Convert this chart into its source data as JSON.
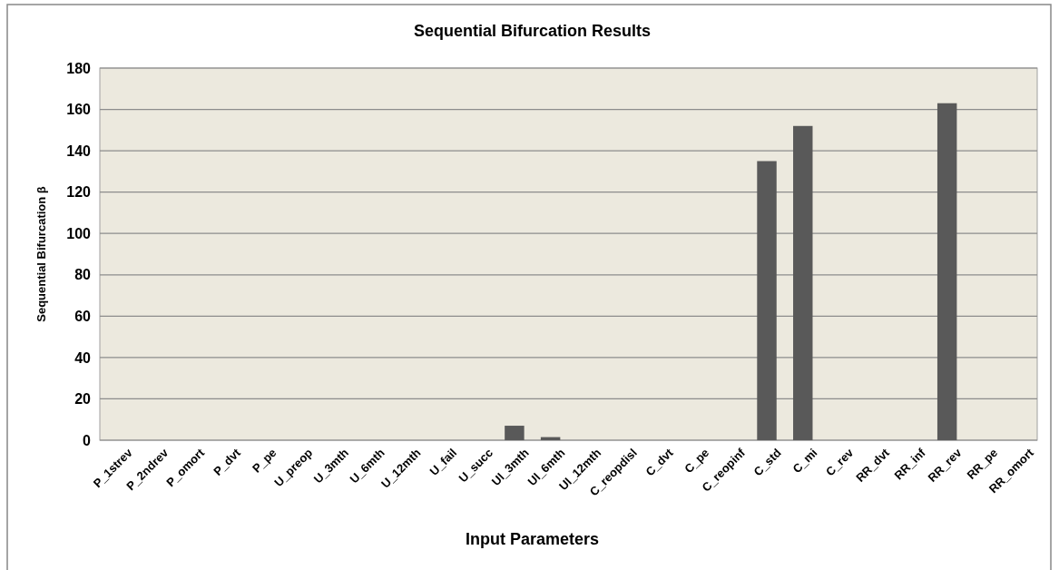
{
  "chart_data": {
    "type": "bar",
    "title": "Sequential Bifurcation Results",
    "xlabel": "Input Parameters",
    "ylabel": "Sequential Bifurcation β",
    "categories": [
      "P_1strev",
      "P_2ndrev",
      "P_omort",
      "P_dvt",
      "P_pe",
      "U_preop",
      "U_3mth",
      "U_6mth",
      "U_12mth",
      "U_fail",
      "U_succ",
      "Ul_3mth",
      "Ul_6mth",
      "Ul_12mth",
      "C_reopdisl",
      "C_dvt",
      "C_pe",
      "C_reopinf",
      "C_std",
      "C_mi",
      "C_rev",
      "RR_dvt",
      "RR_inf",
      "RR_rev",
      "RR_pe",
      "RR_omort"
    ],
    "values": [
      0,
      0,
      0,
      0,
      0,
      0,
      0,
      0,
      0,
      0,
      0,
      7,
      1.5,
      0,
      0,
      0,
      0,
      0,
      135,
      152,
      0,
      0,
      0,
      163,
      0,
      0
    ],
    "color": "#595959",
    "ylim": [
      0,
      180
    ],
    "yticks": [
      0,
      20,
      40,
      60,
      80,
      100,
      120,
      140,
      160,
      180
    ],
    "grid": "y"
  }
}
